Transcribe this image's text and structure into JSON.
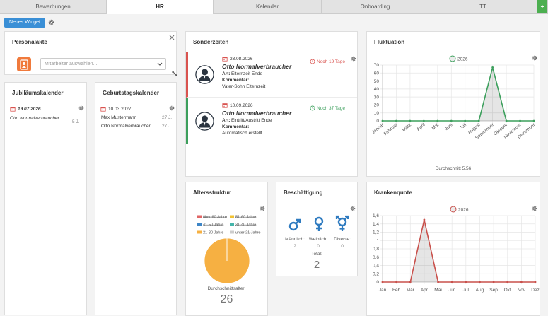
{
  "tabs": [
    "Bewerbungen",
    "HR",
    "Kalendar",
    "Onboarding",
    "TT",
    "+"
  ],
  "toolbar": {
    "new_widget": "Neues Widget"
  },
  "personalakte": {
    "title": "Personalakte",
    "placeholder": "Mitarbeiter auswählen..."
  },
  "jubilaeum": {
    "title": "Jubiläumskalender",
    "entries": [
      {
        "date": "19.07.2026",
        "name": "Otto Normalverbraucher",
        "years": "5 J."
      }
    ]
  },
  "geburtstag": {
    "title": "Geburtstagskalender",
    "date": "10.03.2027",
    "entries": [
      {
        "name": "Max Mustermann",
        "age": "27 J."
      },
      {
        "name": "Otto Normalverbraucher",
        "age": "27 J."
      }
    ]
  },
  "sonderzeiten": {
    "title": "Sonderzeiten",
    "entries": [
      {
        "date": "23.08.2026",
        "name": "Otto Normalverbraucher",
        "art_label": "Art:",
        "art": "Elternzeit Ende",
        "kommentar_label": "Kommentar:",
        "kommentar": "Vater-Sohn Elternzeit",
        "status": "Noch 19 Tage",
        "color": "#d9534f"
      },
      {
        "date": "10.09.2026",
        "name": "Otto Normalverbraucher",
        "art_label": "Art:",
        "art": "Eintritt/Austritt Ende",
        "kommentar_label": "Kommentar:",
        "kommentar": "Automatisch erstellt",
        "status": "Noch 37 Tage",
        "color": "#3c9f5c"
      }
    ]
  },
  "fluktuation": {
    "title": "Fluktuation",
    "footer": "Durchschnitt 5,56",
    "chart": {
      "type": "line",
      "categories": [
        "Januar",
        "Februar",
        "März",
        "April",
        "Mai",
        "Juni",
        "Juli",
        "August",
        "September",
        "Oktober",
        "November",
        "Dezember"
      ],
      "series": [
        {
          "name": "2026",
          "color": "#3c9f5c",
          "values": [
            0,
            0,
            0,
            0,
            0,
            0,
            0,
            0,
            67,
            0,
            0,
            0
          ]
        }
      ],
      "ylim": [
        0,
        70
      ],
      "yticks": [
        0,
        10,
        20,
        30,
        40,
        50,
        60,
        70
      ],
      "grid": true
    }
  },
  "altersstruktur": {
    "title": "Altersstruktur",
    "footer_label": "Durchschnittsalter:",
    "footer_value": 26,
    "chart": {
      "type": "pie",
      "categories": [
        "über 60 Jahre",
        "51-60 Jahre",
        "41-50 Jahre",
        "31-40 Jahre",
        "21-30 Jahre",
        "unter 21 Jahre"
      ],
      "colors": [
        "#e06666",
        "#f1c232",
        "#3d85c6",
        "#45b5aa",
        "#f6b042",
        "#cccccc"
      ],
      "values": [
        0,
        0,
        0,
        0,
        100,
        0
      ]
    }
  },
  "beschaeftigung": {
    "title": "Beschäftigung",
    "items": [
      {
        "label": "Männlich:",
        "value": 2
      },
      {
        "label": "Weiblich:",
        "value": 0
      },
      {
        "label": "Diverse:",
        "value": 0
      }
    ],
    "total_label": "Total:",
    "total": 2
  },
  "krankenquote": {
    "title": "Krankenquote",
    "chart": {
      "type": "line",
      "categories": [
        "Jan",
        "Feb",
        "Mär",
        "Apr",
        "Mai",
        "Jun",
        "Jul",
        "Aug",
        "Sep",
        "Okt",
        "Nov",
        "Dez"
      ],
      "series": [
        {
          "name": "2026",
          "color": "#c9504b",
          "values": [
            0,
            0,
            0,
            1.5,
            0,
            0,
            0,
            0,
            0,
            0,
            0,
            0
          ]
        }
      ],
      "ylim": [
        0,
        1.6
      ],
      "yticks": [
        0,
        {
          "value": 0.2,
          "label": "0,2"
        },
        {
          "value": 0.4,
          "label": "0,4"
        },
        {
          "value": 0.6,
          "label": "0,6"
        },
        {
          "value": 0.8,
          "label": "0,8"
        },
        1,
        {
          "value": 1.2,
          "label": "1,2"
        },
        {
          "value": 1.4,
          "label": "1,4"
        },
        {
          "value": 1.6,
          "label": "1,6"
        }
      ],
      "grid": true
    }
  }
}
